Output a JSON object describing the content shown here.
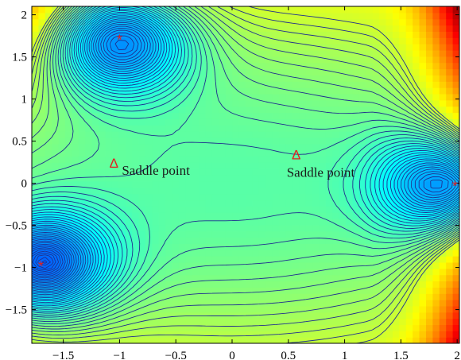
{
  "chart_data": {
    "type": "contour",
    "title": "",
    "xlabel": "",
    "ylabel": "",
    "xlim": [
      -1.78,
      2.02
    ],
    "ylim": [
      -1.9,
      2.1
    ],
    "grid": false,
    "x_ticks": [
      -1.5,
      -1,
      -0.5,
      0,
      0.5,
      1,
      1.5,
      2
    ],
    "x_tick_labels": [
      "−1.5",
      "−1",
      "−0.5",
      "0",
      "0.5",
      "1",
      "1.5",
      "2"
    ],
    "y_ticks": [
      2,
      1.5,
      1,
      0.5,
      0,
      -0.5,
      -1,
      -1.5
    ],
    "y_tick_labels": [
      "2",
      "1.5",
      "1",
      "0.5",
      "0",
      "−0.5",
      "−1",
      "−1.5"
    ],
    "minima": [
      {
        "x": -1.0,
        "y": 1.72,
        "symbol": "*"
      },
      {
        "x": -1.7,
        "y": -0.97,
        "symbol": "*"
      },
      {
        "x": 1.98,
        "y": -0.02,
        "symbol": "*"
      }
    ],
    "saddles": [
      {
        "x": -1.05,
        "y": 0.23,
        "symbol": "Δ",
        "label": "Saddle point"
      },
      {
        "x": 0.57,
        "y": 0.33,
        "symbol": "Δ",
        "label": "Saddle point"
      }
    ],
    "colors": {
      "contour_line": "#1f2f8f",
      "background_low": "#2a5ec8",
      "marker": "#e02020"
    }
  }
}
